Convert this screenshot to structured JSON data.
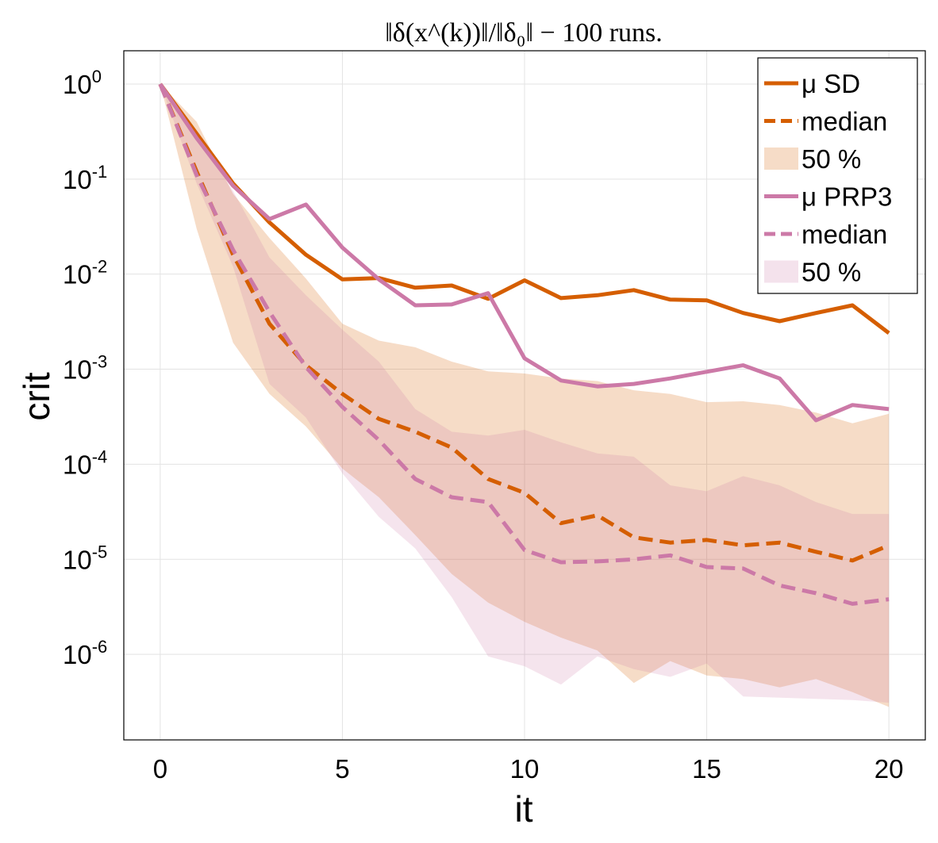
{
  "chart_data": {
    "type": "line",
    "title": "‖δ(x^(k))‖/‖δ₀‖ − 100 runs.",
    "xlabel": "it",
    "ylabel": "crit",
    "xlim": [
      -1,
      21
    ],
    "ylim_log10": [
      -6.9,
      0.35
    ],
    "y_scale": "log",
    "grid": true,
    "legend_position": "top-right",
    "x_ticks": [
      0,
      5,
      10,
      15,
      20
    ],
    "y_ticks": [
      {
        "exp": 0,
        "base": "10",
        "sup": "0"
      },
      {
        "exp": -1,
        "base": "10",
        "sup": "-1"
      },
      {
        "exp": -2,
        "base": "10",
        "sup": "-2"
      },
      {
        "exp": -3,
        "base": "10",
        "sup": "-3"
      },
      {
        "exp": -4,
        "base": "10",
        "sup": "-4"
      },
      {
        "exp": -5,
        "base": "10",
        "sup": "-5"
      },
      {
        "exp": -6,
        "base": "10",
        "sup": "-6"
      }
    ],
    "x": [
      0,
      1,
      2,
      3,
      4,
      5,
      6,
      7,
      8,
      9,
      10,
      11,
      12,
      13,
      14,
      15,
      16,
      17,
      18,
      19,
      20
    ],
    "bands": [
      {
        "legend": "50 %",
        "color": "#d55e00",
        "opacity": 0.22,
        "lower": [
          1.0,
          0.03,
          0.0019,
          0.00055,
          0.00025,
          9e-05,
          4.5e-05,
          1.8e-05,
          7e-06,
          3.5e-06,
          2.2e-06,
          1.5e-06,
          1.1e-06,
          5e-07,
          8.5e-07,
          6e-07,
          5.5e-07,
          4.5e-07,
          5.5e-07,
          4e-07,
          2.8e-07
        ],
        "upper": [
          1.0,
          0.4,
          0.07,
          0.024,
          0.009,
          0.003,
          0.002,
          0.0017,
          0.0012,
          0.00095,
          0.0009,
          0.0008,
          0.00075,
          0.0006,
          0.00055,
          0.00045,
          0.00046,
          0.00042,
          0.00035,
          0.00027,
          0.00034
        ]
      },
      {
        "legend": "50 %",
        "color": "#cc79a7",
        "opacity": 0.2,
        "lower": [
          1.0,
          0.09,
          0.012,
          0.0007,
          0.00031,
          8e-05,
          2.8e-05,
          1.3e-05,
          4e-06,
          9.5e-07,
          7.5e-07,
          4.8e-07,
          9.5e-07,
          7e-07,
          5.8e-07,
          8e-07,
          3.6e-07,
          3.5e-07,
          3.4e-07,
          3.3e-07,
          3.1e-07
        ],
        "upper": [
          1.0,
          0.28,
          0.075,
          0.015,
          0.006,
          0.0026,
          0.0012,
          0.00038,
          0.00022,
          0.0002,
          0.00023,
          0.00017,
          0.00013,
          0.00012,
          6e-05,
          5.2e-05,
          7.5e-05,
          6e-05,
          4e-05,
          3e-05,
          3e-05
        ]
      }
    ],
    "series": [
      {
        "name": "μ SD",
        "color": "#d55e00",
        "dash": "solid",
        "values": [
          1.0,
          0.3,
          0.09,
          0.035,
          0.016,
          0.0088,
          0.0091,
          0.0072,
          0.0076,
          0.0055,
          0.0086,
          0.0056,
          0.006,
          0.0068,
          0.0054,
          0.0053,
          0.0039,
          0.0032,
          0.0039,
          0.0047,
          0.0024
        ]
      },
      {
        "name": "median",
        "color": "#d55e00",
        "dash": "dashed",
        "values": [
          1.0,
          0.12,
          0.016,
          0.003,
          0.0011,
          0.00055,
          0.0003,
          0.00022,
          0.00015,
          7e-05,
          5e-05,
          2.4e-05,
          2.9e-05,
          1.7e-05,
          1.5e-05,
          1.6e-05,
          1.4e-05,
          1.5e-05,
          1.2e-05,
          9.7e-06,
          1.4e-05
        ]
      },
      {
        "name": "μ PRP3",
        "color": "#cc79a7",
        "dash": "solid",
        "values": [
          1.0,
          0.27,
          0.085,
          0.038,
          0.054,
          0.019,
          0.0088,
          0.0047,
          0.0048,
          0.0063,
          0.0013,
          0.00076,
          0.00066,
          0.0007,
          0.0008,
          0.00094,
          0.0011,
          0.0008,
          0.00029,
          0.00042,
          0.00038
        ]
      },
      {
        "name": "median",
        "color": "#cc79a7",
        "dash": "dashed",
        "values": [
          1.0,
          0.11,
          0.018,
          0.004,
          0.00105,
          0.0004,
          0.00018,
          7e-05,
          4.5e-05,
          4e-05,
          1.25e-05,
          9.3e-06,
          9.5e-06,
          1e-05,
          1.1e-05,
          8.3e-06,
          8e-06,
          5.3e-06,
          4.4e-06,
          3.4e-06,
          3.8e-06
        ]
      }
    ],
    "legend": [
      {
        "label": "μ SD",
        "kind": "line",
        "color": "#d55e00"
      },
      {
        "label": "median",
        "kind": "dash",
        "color": "#d55e00"
      },
      {
        "label": "50 %",
        "kind": "band",
        "color": "#d55e00"
      },
      {
        "label": "μ PRP3",
        "kind": "line",
        "color": "#cc79a7"
      },
      {
        "label": "median",
        "kind": "dash",
        "color": "#cc79a7"
      },
      {
        "label": "50 %",
        "kind": "band",
        "color": "#cc79a7"
      }
    ]
  }
}
